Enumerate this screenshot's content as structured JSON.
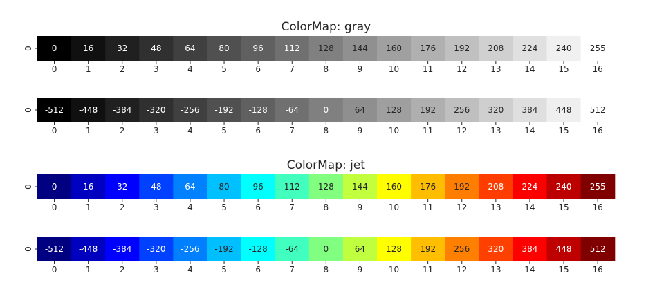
{
  "chart_data": [
    {
      "type": "heatmap",
      "title": "ColorMap: gray",
      "colormap": "gray",
      "x_ticks": [
        "0",
        "1",
        "2",
        "3",
        "4",
        "5",
        "6",
        "7",
        "8",
        "9",
        "10",
        "11",
        "12",
        "13",
        "14",
        "15",
        "16"
      ],
      "y_ticks": [
        "0"
      ],
      "values": [
        0,
        16,
        32,
        48,
        64,
        80,
        96,
        112,
        128,
        144,
        160,
        176,
        192,
        208,
        224,
        240,
        255
      ],
      "vmin": 0,
      "vmax": 255
    },
    {
      "type": "heatmap",
      "title": "",
      "colormap": "gray",
      "x_ticks": [
        "0",
        "1",
        "2",
        "3",
        "4",
        "5",
        "6",
        "7",
        "8",
        "9",
        "10",
        "11",
        "12",
        "13",
        "14",
        "15",
        "16"
      ],
      "y_ticks": [
        "0"
      ],
      "values": [
        -512,
        -448,
        -384,
        -320,
        -256,
        -192,
        -128,
        -64,
        0,
        64,
        128,
        192,
        256,
        320,
        384,
        448,
        512
      ],
      "vmin": -512,
      "vmax": 512
    },
    {
      "type": "heatmap",
      "title": "ColorMap: jet",
      "colormap": "jet",
      "x_ticks": [
        "0",
        "1",
        "2",
        "3",
        "4",
        "5",
        "6",
        "7",
        "8",
        "9",
        "10",
        "11",
        "12",
        "13",
        "14",
        "15",
        "16"
      ],
      "y_ticks": [
        "0"
      ],
      "values": [
        0,
        16,
        32,
        48,
        64,
        80,
        96,
        112,
        128,
        144,
        160,
        176,
        192,
        208,
        224,
        240,
        255
      ],
      "vmin": 0,
      "vmax": 255
    },
    {
      "type": "heatmap",
      "title": "",
      "colormap": "jet",
      "x_ticks": [
        "0",
        "1",
        "2",
        "3",
        "4",
        "5",
        "6",
        "7",
        "8",
        "9",
        "10",
        "11",
        "12",
        "13",
        "14",
        "15",
        "16"
      ],
      "y_ticks": [
        "0"
      ],
      "values": [
        -512,
        -448,
        -384,
        -320,
        -256,
        -192,
        -128,
        -64,
        0,
        64,
        128,
        192,
        256,
        320,
        384,
        448,
        512
      ],
      "vmin": -512,
      "vmax": 512
    }
  ]
}
